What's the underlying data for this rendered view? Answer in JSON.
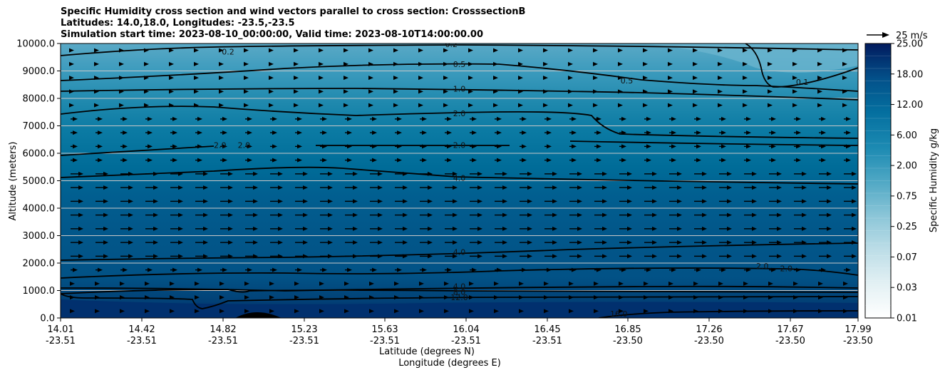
{
  "chart_data": {
    "type": "contour",
    "title_lines": [
      "Specific Humidity cross section and wind vectors parallel to cross section: CrosssectionB",
      "Latitudes: 14.0,18.0, Longitudes: -23.5,-23.5",
      "Simulation start time: 2023-08-10_00:00:00, Valid time: 2023-08-10T14:00:00.00"
    ],
    "ylabel": "Altitude (meters)",
    "xlabel_lat": "Latitude (degrees N)",
    "xlabel_lon": "Longitude (degrees E)",
    "ylim": [
      0,
      10000
    ],
    "yticks": [
      "0.0",
      "1000.0",
      "2000.0",
      "3000.0",
      "4000.0",
      "5000.0",
      "6000.0",
      "7000.0",
      "8000.0",
      "9000.0",
      "10000.0"
    ],
    "xticks": [
      {
        "lat": "14.01",
        "lon": "-23.51"
      },
      {
        "lat": "14.42",
        "lon": "-23.51"
      },
      {
        "lat": "14.82",
        "lon": "-23.51"
      },
      {
        "lat": "15.23",
        "lon": "-23.51"
      },
      {
        "lat": "15.63",
        "lon": "-23.51"
      },
      {
        "lat": "16.04",
        "lon": "-23.51"
      },
      {
        "lat": "16.45",
        "lon": "-23.51"
      },
      {
        "lat": "16.85",
        "lon": "-23.50"
      },
      {
        "lat": "17.26",
        "lon": "-23.50"
      },
      {
        "lat": "17.67",
        "lon": "-23.50"
      },
      {
        "lat": "17.99",
        "lon": "-23.50"
      }
    ],
    "colorbar": {
      "label": "Specific Humidity g/kg",
      "ticks": [
        "0.01",
        "0.03",
        "0.07",
        "0.25",
        "0.75",
        "2.00",
        "6.00",
        "12.00",
        "18.00",
        "25.00"
      ]
    },
    "quiver_key": "25 m/s",
    "contour_labels": [
      {
        "text": "0.2",
        "x": 0.21,
        "y": 9700
      },
      {
        "text": "0.2",
        "x": 0.49,
        "y": 9980
      },
      {
        "text": "0.5",
        "x": 0.5,
        "y": 9250
      },
      {
        "text": "0.5",
        "x": 0.71,
        "y": 8650
      },
      {
        "text": "0.1",
        "x": 0.93,
        "y": 8600
      },
      {
        "text": "1.0",
        "x": 0.5,
        "y": 8350
      },
      {
        "text": "2.0",
        "x": 0.5,
        "y": 7450
      },
      {
        "text": "2.0",
        "x": 0.2,
        "y": 6300
      },
      {
        "text": "2.0",
        "x": 0.23,
        "y": 6300
      },
      {
        "text": "2.0",
        "x": 0.5,
        "y": 6300
      },
      {
        "text": "4.0",
        "x": 0.5,
        "y": 5100
      },
      {
        "text": "4.0",
        "x": 0.5,
        "y": 2400
      },
      {
        "text": "2.0",
        "x": 0.88,
        "y": 1900
      },
      {
        "text": "2.0",
        "x": 0.91,
        "y": 1800
      },
      {
        "text": "4.0",
        "x": 0.5,
        "y": 1150
      },
      {
        "text": "8.0",
        "x": 0.5,
        "y": 950
      },
      {
        "text": "12.0",
        "x": 0.5,
        "y": 750
      },
      {
        "text": "16.0",
        "x": 0.7,
        "y": 150
      }
    ]
  }
}
